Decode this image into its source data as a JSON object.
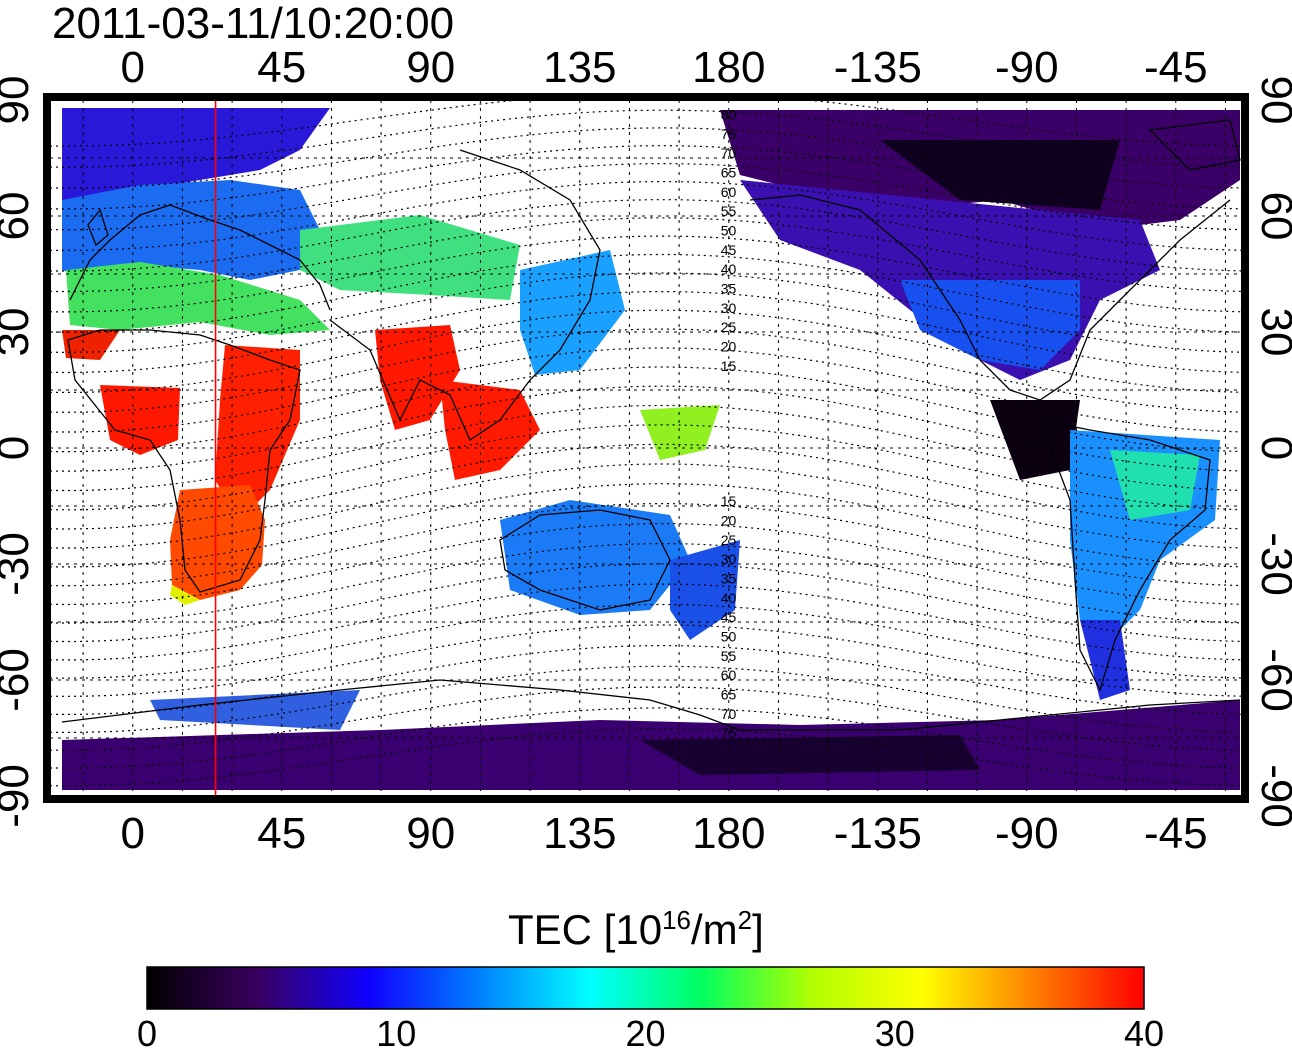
{
  "timestamp": "2011-03-11/10:20:00",
  "map": {
    "lon_tick_labels": [
      "0",
      "45",
      "90",
      "135",
      "180",
      "-135",
      "-90",
      "-45"
    ],
    "lat_tick_labels": [
      "90",
      "60",
      "30",
      "0",
      "-30",
      "-60",
      "-90"
    ],
    "lon_ticks": [
      0,
      45,
      90,
      135,
      180,
      225,
      270,
      315
    ],
    "lat_ticks": [
      90,
      60,
      30,
      0,
      -30,
      -60,
      -90
    ],
    "lon_range": [
      -25,
      335
    ],
    "lat_range": [
      -90,
      90
    ],
    "terminator_longitude": 25,
    "contour_labels_north": [
      "80",
      "75",
      "70",
      "65",
      "60",
      "55",
      "50",
      "45",
      "40",
      "35",
      "30",
      "25",
      "20",
      "15"
    ],
    "contour_labels_south": [
      "15",
      "20",
      "25",
      "30",
      "35",
      "40",
      "45",
      "50",
      "55",
      "60",
      "65",
      "70",
      "75"
    ],
    "colors": {
      "terminator": "#ff0000",
      "grid": "#000000"
    }
  },
  "colorbar": {
    "title_main": "TEC  [10",
    "title_sup1": "16",
    "title_mid": "/m",
    "title_sup2": "2",
    "title_end": "]",
    "tick_labels": [
      "0",
      "10",
      "20",
      "30",
      "40"
    ],
    "tick_values": [
      0,
      10,
      20,
      30,
      40
    ],
    "range": [
      0,
      40
    ],
    "colormap": [
      "#000000",
      "#3a0060",
      "#1000ff",
      "#0080ff",
      "#00ffff",
      "#00ff60",
      "#b0ff00",
      "#ffff00",
      "#ff8000",
      "#ff0000"
    ]
  }
}
